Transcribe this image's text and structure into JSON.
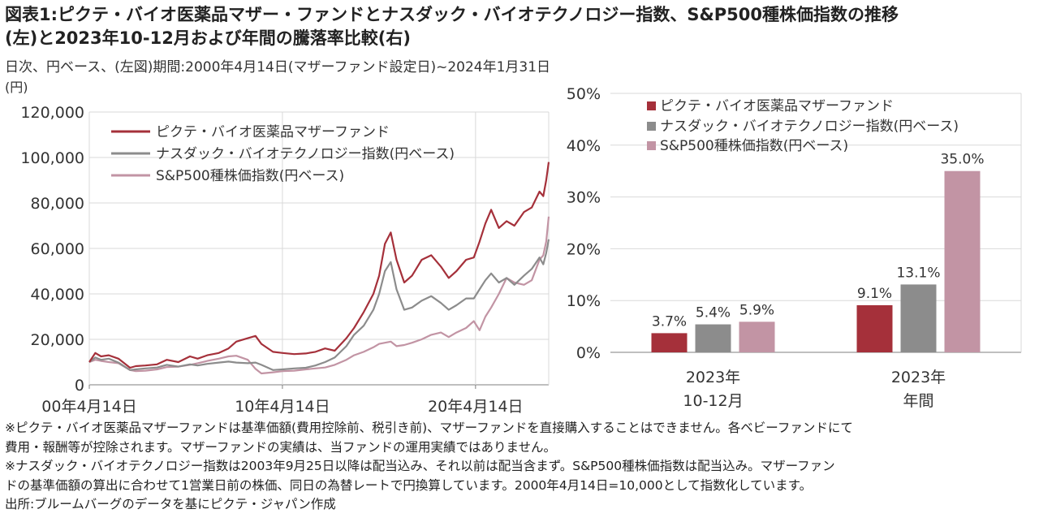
{
  "title_line1": "図表1:ピクテ・バイオ医薬品マザー・ファンドとナスダック・バイオテクノロジー指数、S&P500種株価指数の推移",
  "title_line2": "(左)と2023年10-12月および年間の騰落率比較(右)",
  "subtitle": "日次、円ベース、(左図)期間:2000年4月14日(マザーファンド設定日)~2024年1月31日",
  "unit_label": "(円)",
  "colors": {
    "pictet": "#a5303a",
    "nasdaq": "#8c8c8c",
    "sp500": "#c294a4",
    "grid": "#d9d9d9",
    "axis": "#7f7f7f"
  },
  "chart_data": [
    {
      "type": "line",
      "ylabel": "(円)",
      "ylim": [
        0,
        120000
      ],
      "y_ticks": [
        "0",
        "20,000",
        "40,000",
        "60,000",
        "80,000",
        "100,000",
        "120,000"
      ],
      "y_tick_values": [
        0,
        20000,
        40000,
        60000,
        80000,
        100000,
        120000
      ],
      "x_ticks": [
        "00年4月14日",
        "10年4月14日",
        "20年4月14日"
      ],
      "x_tick_years": [
        2000.29,
        2010.29,
        2020.29
      ],
      "xlim": [
        2000.29,
        2024.08
      ],
      "grid": true,
      "legend_position": "top-left",
      "series": [
        {
          "name": "ピクテ・バイオ医薬品マザーファンド",
          "color": "#a5303a",
          "x": [
            2000.29,
            2000.6,
            2000.9,
            2001.3,
            2001.8,
            2002.4,
            2002.7,
            2003.2,
            2003.8,
            2004.3,
            2004.9,
            2005.5,
            2005.9,
            2006.4,
            2007.0,
            2007.5,
            2007.9,
            2008.5,
            2008.9,
            2009.2,
            2009.8,
            2010.3,
            2010.9,
            2011.5,
            2012.0,
            2012.5,
            2013.0,
            2013.6,
            2014.0,
            2014.5,
            2015.0,
            2015.3,
            2015.6,
            2015.9,
            2016.2,
            2016.6,
            2017.0,
            2017.5,
            2018.0,
            2018.5,
            2018.9,
            2019.3,
            2019.8,
            2020.2,
            2020.5,
            2020.8,
            2021.1,
            2021.5,
            2021.9,
            2022.3,
            2022.8,
            2023.2,
            2023.6,
            2023.8,
            2023.95,
            2024.08
          ],
          "y": [
            10000,
            14000,
            12500,
            13000,
            11500,
            7500,
            8200,
            8500,
            9000,
            11000,
            10000,
            12500,
            11500,
            13000,
            14000,
            16000,
            19000,
            20500,
            21500,
            18000,
            14500,
            14000,
            13500,
            13800,
            14500,
            16000,
            15000,
            20500,
            25000,
            32000,
            40000,
            48000,
            62000,
            67000,
            55000,
            45000,
            48000,
            55000,
            57000,
            52000,
            47000,
            50000,
            55000,
            56000,
            63000,
            71000,
            77000,
            69000,
            72000,
            70000,
            76000,
            78000,
            85000,
            83000,
            90000,
            98000
          ]
        },
        {
          "name": "ナスダック・バイオテクノロジー指数(円ベース)",
          "color": "#8c8c8c",
          "x": [
            2000.29,
            2000.6,
            2000.9,
            2001.3,
            2001.8,
            2002.4,
            2002.7,
            2003.2,
            2003.8,
            2004.3,
            2004.9,
            2005.5,
            2005.9,
            2006.4,
            2007.0,
            2007.5,
            2007.9,
            2008.5,
            2008.9,
            2009.2,
            2009.8,
            2010.3,
            2010.9,
            2011.5,
            2012.0,
            2012.5,
            2013.0,
            2013.6,
            2014.0,
            2014.5,
            2015.0,
            2015.3,
            2015.6,
            2015.9,
            2016.2,
            2016.6,
            2017.0,
            2017.5,
            2018.0,
            2018.5,
            2018.9,
            2019.3,
            2019.8,
            2020.2,
            2020.5,
            2020.8,
            2021.1,
            2021.5,
            2021.9,
            2022.3,
            2022.8,
            2023.2,
            2023.6,
            2023.8,
            2023.95,
            2024.08
          ],
          "y": [
            10000,
            12000,
            11000,
            11500,
            9800,
            6500,
            6800,
            7200,
            7600,
            8800,
            8000,
            9000,
            8500,
            9200,
            9800,
            10200,
            9800,
            9500,
            9800,
            8800,
            6500,
            6800,
            7200,
            7500,
            8500,
            10000,
            12000,
            17000,
            22000,
            26000,
            33000,
            40000,
            50000,
            54000,
            42000,
            33000,
            34000,
            37000,
            39000,
            36000,
            33000,
            35000,
            38000,
            38000,
            42000,
            46000,
            49000,
            45000,
            47000,
            44000,
            48000,
            51000,
            56000,
            53000,
            58000,
            64000
          ]
        },
        {
          "name": "S&P500種株価指数(円ベース)",
          "color": "#c294a4",
          "x": [
            2000.29,
            2000.6,
            2000.9,
            2001.3,
            2001.8,
            2002.4,
            2002.7,
            2003.2,
            2003.8,
            2004.3,
            2004.9,
            2005.5,
            2005.9,
            2006.4,
            2007.0,
            2007.5,
            2007.9,
            2008.5,
            2008.9,
            2009.2,
            2009.8,
            2010.3,
            2010.9,
            2011.5,
            2012.0,
            2012.5,
            2013.0,
            2013.6,
            2014.0,
            2014.5,
            2015.0,
            2015.3,
            2015.6,
            2015.9,
            2016.2,
            2016.6,
            2017.0,
            2017.5,
            2018.0,
            2018.5,
            2018.9,
            2019.3,
            2019.8,
            2020.2,
            2020.5,
            2020.8,
            2021.1,
            2021.5,
            2021.9,
            2022.3,
            2022.8,
            2023.2,
            2023.6,
            2023.8,
            2023.95,
            2024.08
          ],
          "y": [
            10000,
            11000,
            10500,
            10000,
            9500,
            6500,
            6000,
            6200,
            6800,
            7800,
            8000,
            8800,
            9500,
            10500,
            11500,
            12500,
            12800,
            11000,
            7000,
            5000,
            5500,
            6000,
            6200,
            6800,
            7200,
            7600,
            8800,
            11000,
            13000,
            14500,
            16500,
            18000,
            18500,
            19000,
            17000,
            17500,
            18500,
            20000,
            22000,
            23000,
            21000,
            23000,
            25000,
            28000,
            24000,
            30000,
            34000,
            40000,
            47000,
            45000,
            44000,
            46000,
            55000,
            57000,
            63000,
            74000
          ]
        }
      ]
    },
    {
      "type": "bar",
      "ylim": [
        0,
        50
      ],
      "y_ticks": [
        "0%",
        "10%",
        "20%",
        "30%",
        "40%",
        "50%"
      ],
      "y_tick_values": [
        0,
        10,
        20,
        30,
        40,
        50
      ],
      "categories": [
        "2023年\n10-12月",
        "2023年\n年間"
      ],
      "legend_position": "top-left",
      "series": [
        {
          "name": "ピクテ・バイオ医薬品マザーファンド",
          "color": "#a5303a",
          "values": [
            3.7,
            9.1
          ],
          "labels": [
            "3.7%",
            "9.1%"
          ]
        },
        {
          "name": "ナスダック・バイオテクノロジー指数(円ベース)",
          "color": "#8c8c8c",
          "values": [
            5.4,
            13.1
          ],
          "labels": [
            "5.4%",
            "13.1%"
          ]
        },
        {
          "name": "S&P500種株価指数(円ベース)",
          "color": "#c294a4",
          "values": [
            5.9,
            35.0
          ],
          "labels": [
            "5.9%",
            "35.0%"
          ]
        }
      ]
    }
  ],
  "notes": [
    "※ピクテ・バイオ医薬品マザーファンドは基準価額(費用控除前、税引き前)、マザーファンドを直接購入することはできません。各ベビーファンドにて",
    "費用・報酬等が控除されます。マザーファンドの実績は、当ファンドの運用実績ではありません。",
    "※ナスダック・バイオテクノロジー指数は2003年9月25日以降は配当込み、それ以前は配当含まず。S&P500種株価指数は配当込み。マザーファン",
    "ドの基準価額の算出に合わせて1営業日前の株価、同日の為替レートで円換算しています。2000年4月14日=10,000として指数化しています。",
    "出所:ブルームバーグのデータを基にピクテ・ジャパン作成"
  ]
}
